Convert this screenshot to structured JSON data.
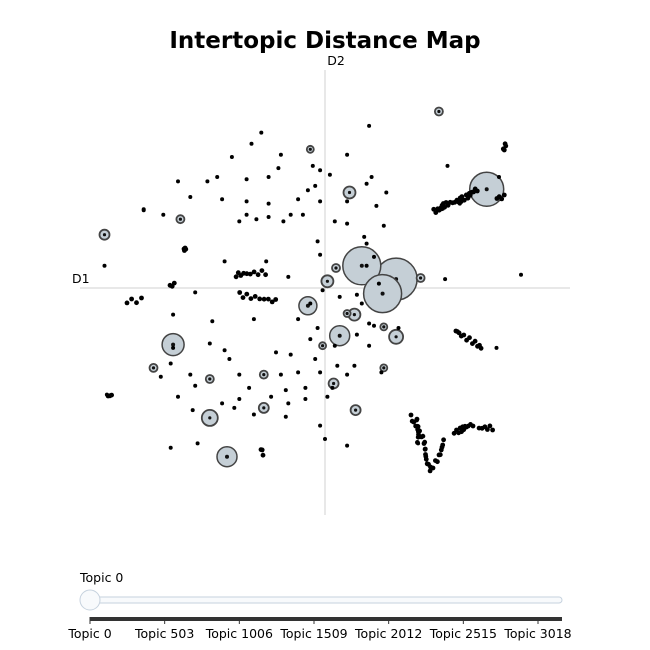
{
  "chart_data": {
    "type": "scatter",
    "title": "Intertopic Distance Map",
    "xlabel": "D1",
    "ylabel": "D2",
    "xlim": [
      -10,
      10
    ],
    "ylim": [
      -10,
      10
    ],
    "grid": false,
    "colors": {
      "bubble_fill": "#c5cfd6",
      "bubble_stroke": "#444444",
      "point": "#000000",
      "axis": "#d0d0d0"
    },
    "bubbles": [
      {
        "x": 6.6,
        "y": 4.45,
        "r": 17
      },
      {
        "x": 1.5,
        "y": 1.0,
        "r": 19
      },
      {
        "x": 2.9,
        "y": 0.4,
        "r": 21
      },
      {
        "x": 2.35,
        "y": -0.25,
        "r": 19
      },
      {
        "x": -6.2,
        "y": -2.55,
        "r": 11
      },
      {
        "x": -4.0,
        "y": -7.6,
        "r": 10
      },
      {
        "x": 0.6,
        "y": -2.15,
        "r": 10
      },
      {
        "x": -0.7,
        "y": -0.8,
        "r": 9
      },
      {
        "x": -4.7,
        "y": -5.85,
        "r": 8
      },
      {
        "x": 2.9,
        "y": -2.2,
        "r": 7
      },
      {
        "x": 1.0,
        "y": 4.3,
        "r": 6
      },
      {
        "x": 0.1,
        "y": 0.3,
        "r": 6
      },
      {
        "x": 1.2,
        "y": -1.2,
        "r": 6
      },
      {
        "x": -9.0,
        "y": 2.4,
        "r": 5
      },
      {
        "x": 0.35,
        "y": -4.3,
        "r": 5
      },
      {
        "x": 1.25,
        "y": -5.5,
        "r": 5
      },
      {
        "x": -2.5,
        "y": -5.4,
        "r": 5
      },
      {
        "x": 4.65,
        "y": 7.95,
        "r": 4
      },
      {
        "x": -7.0,
        "y": -3.6,
        "r": 4
      },
      {
        "x": 3.9,
        "y": 0.45,
        "r": 4
      },
      {
        "x": 0.45,
        "y": 0.9,
        "r": 4
      },
      {
        "x": -2.5,
        "y": -3.9,
        "r": 4
      },
      {
        "x": -4.7,
        "y": -4.1,
        "r": 4
      },
      {
        "x": -5.9,
        "y": 3.1,
        "r": 4
      },
      {
        "x": -0.6,
        "y": 6.25,
        "r": 3.5
      },
      {
        "x": 2.4,
        "y": -1.75,
        "r": 3.5
      },
      {
        "x": -0.1,
        "y": -2.6,
        "r": 3.5
      },
      {
        "x": 2.4,
        "y": -3.6,
        "r": 3.5
      },
      {
        "x": 0.9,
        "y": -1.15,
        "r": 3.5
      }
    ],
    "clusters": [
      {
        "x1": 4.4,
        "y1": 3.45,
        "x2": 5.6,
        "y2": 4.05,
        "n": 22
      },
      {
        "x1": 5.6,
        "y1": 4.05,
        "x2": 6.3,
        "y2": 4.45,
        "n": 10
      },
      {
        "x1": 7.2,
        "y1": 6.2,
        "x2": 7.4,
        "y2": 6.5,
        "n": 4
      },
      {
        "x1": 7.0,
        "y1": 4.05,
        "x2": 7.4,
        "y2": 4.1,
        "n": 4
      },
      {
        "x1": 5.4,
        "y1": -1.9,
        "x2": 6.3,
        "y2": -2.7,
        "n": 12
      },
      {
        "x1": 3.6,
        "y1": -5.8,
        "x2": 4.35,
        "y2": -8.15,
        "n": 18
      },
      {
        "x1": 3.8,
        "y1": -5.85,
        "x2": 3.7,
        "y2": -6.9,
        "n": 8
      },
      {
        "x1": 4.3,
        "y1": -8.15,
        "x2": 4.9,
        "y2": -6.9,
        "n": 10
      },
      {
        "x1": 5.2,
        "y1": -6.5,
        "x2": 6.1,
        "y2": -6.15,
        "n": 12
      },
      {
        "x1": 6.2,
        "y1": -6.3,
        "x2": 6.9,
        "y2": -6.3,
        "n": 6
      },
      {
        "x1": -5.8,
        "y1": 1.7,
        "x2": -5.6,
        "y2": 1.8,
        "n": 5
      },
      {
        "x1": -3.6,
        "y1": 0.6,
        "x2": -2.5,
        "y2": 0.7,
        "n": 10
      },
      {
        "x1": -3.4,
        "y1": -0.3,
        "x2": -2.1,
        "y2": -0.6,
        "n": 10
      },
      {
        "x1": -8.0,
        "y1": -0.6,
        "x2": -7.5,
        "y2": -0.55,
        "n": 4
      },
      {
        "x1": -6.3,
        "y1": 0.1,
        "x2": -6.2,
        "y2": 0.15,
        "n": 3
      },
      {
        "x1": -8.9,
        "y1": -4.9,
        "x2": -8.8,
        "y2": -4.8,
        "n": 3
      },
      {
        "x1": -2.7,
        "y1": -7.2,
        "x2": -2.6,
        "y2": -7.5,
        "n": 3
      }
    ],
    "points": [
      [
        -2.6,
        7.0
      ],
      [
        1.8,
        7.3
      ],
      [
        -3.0,
        6.5
      ],
      [
        -1.8,
        6.0
      ],
      [
        0.9,
        6.0
      ],
      [
        -3.8,
        5.9
      ],
      [
        -0.5,
        5.5
      ],
      [
        -4.4,
        5.0
      ],
      [
        -2.3,
        5.0
      ],
      [
        -1.9,
        5.4
      ],
      [
        0.2,
        5.1
      ],
      [
        -0.2,
        5.3
      ],
      [
        1.9,
        5.0
      ],
      [
        2.5,
        4.3
      ],
      [
        -6.0,
        4.8
      ],
      [
        -4.8,
        4.8
      ],
      [
        -3.2,
        4.9
      ],
      [
        -0.4,
        4.6
      ],
      [
        -5.5,
        4.1
      ],
      [
        -4.2,
        4.0
      ],
      [
        -1.1,
        4.0
      ],
      [
        -0.7,
        4.4
      ],
      [
        1.7,
        4.7
      ],
      [
        -3.2,
        3.9
      ],
      [
        -2.3,
        3.8
      ],
      [
        -0.2,
        3.9
      ],
      [
        0.9,
        3.9
      ],
      [
        2.1,
        3.7
      ],
      [
        -7.4,
        3.55
      ],
      [
        -6.6,
        3.3
      ],
      [
        -3.5,
        3.0
      ],
      [
        -3.2,
        3.3
      ],
      [
        -2.8,
        3.1
      ],
      [
        -2.3,
        3.2
      ],
      [
        -1.7,
        3.0
      ],
      [
        -1.4,
        3.3
      ],
      [
        -0.9,
        3.3
      ],
      [
        0.4,
        3.0
      ],
      [
        0.9,
        2.9
      ],
      [
        -0.3,
        2.1
      ],
      [
        1.6,
        2.3
      ],
      [
        2.4,
        2.8
      ],
      [
        -0.2,
        1.5
      ],
      [
        2.0,
        1.4
      ],
      [
        -9.0,
        1.0
      ],
      [
        -4.1,
        1.2
      ],
      [
        -2.4,
        1.2
      ],
      [
        -1.5,
        0.5
      ],
      [
        1.7,
        1.0
      ],
      [
        4.9,
        0.4
      ],
      [
        8.0,
        0.6
      ],
      [
        -0.1,
        -0.1
      ],
      [
        0.6,
        -0.4
      ],
      [
        1.3,
        -0.3
      ],
      [
        1.5,
        -0.7
      ],
      [
        -2.3,
        -0.5
      ],
      [
        -5.3,
        -0.2
      ],
      [
        -4.6,
        -1.5
      ],
      [
        -1.1,
        -1.4
      ],
      [
        -0.3,
        -1.8
      ],
      [
        1.8,
        -1.6
      ],
      [
        3.0,
        -1.8
      ],
      [
        2.0,
        -1.7
      ],
      [
        -6.2,
        -1.2
      ],
      [
        -4.7,
        -2.5
      ],
      [
        -4.1,
        -2.8
      ],
      [
        -0.6,
        -2.3
      ],
      [
        0.4,
        -2.6
      ],
      [
        1.3,
        -2.1
      ],
      [
        1.8,
        -2.6
      ],
      [
        7.0,
        -2.7
      ],
      [
        -6.2,
        -2.7
      ],
      [
        -3.9,
        -3.2
      ],
      [
        -2.0,
        -2.9
      ],
      [
        -1.4,
        -3.0
      ],
      [
        -0.4,
        -3.2
      ],
      [
        0.5,
        -3.5
      ],
      [
        1.2,
        -3.5
      ],
      [
        -6.3,
        -3.4
      ],
      [
        -5.5,
        -3.9
      ],
      [
        -3.5,
        -3.9
      ],
      [
        -1.8,
        -3.9
      ],
      [
        -1.1,
        -3.8
      ],
      [
        -0.2,
        -3.8
      ],
      [
        2.3,
        -3.8
      ],
      [
        -6.7,
        -4.0
      ],
      [
        -5.3,
        -4.4
      ],
      [
        -3.1,
        -4.5
      ],
      [
        -1.6,
        -4.6
      ],
      [
        -0.8,
        -4.5
      ],
      [
        0.3,
        -4.5
      ],
      [
        0.9,
        -3.9
      ],
      [
        -6.0,
        -4.9
      ],
      [
        -4.2,
        -5.2
      ],
      [
        -3.5,
        -5.0
      ],
      [
        -2.2,
        -4.9
      ],
      [
        -1.5,
        -5.2
      ],
      [
        -0.8,
        -5.0
      ],
      [
        0.1,
        -4.9
      ],
      [
        -5.4,
        -5.5
      ],
      [
        -3.7,
        -5.4
      ],
      [
        -2.9,
        -5.7
      ],
      [
        -1.6,
        -5.8
      ],
      [
        -0.2,
        -6.2
      ],
      [
        -6.3,
        -7.2
      ],
      [
        -5.2,
        -7.0
      ],
      [
        0.0,
        -6.8
      ],
      [
        0.9,
        -7.1
      ],
      [
        3.8,
        -7.0
      ],
      [
        -7.4,
        3.5
      ],
      [
        5.0,
        5.5
      ],
      [
        7.1,
        5.0
      ],
      [
        5.5,
        3.8
      ],
      [
        -0.6,
        -0.7
      ],
      [
        -8.9,
        -4.8
      ],
      [
        1.7,
        2.0
      ],
      [
        2.2,
        0.2
      ],
      [
        -2.9,
        -1.4
      ]
    ],
    "slider": {
      "current_label": "Topic 0",
      "ticks": [
        "Topic 0",
        "Topic 503",
        "Topic 1006",
        "Topic 1509",
        "Topic 2012",
        "Topic 2515",
        "Topic 3018"
      ]
    }
  }
}
